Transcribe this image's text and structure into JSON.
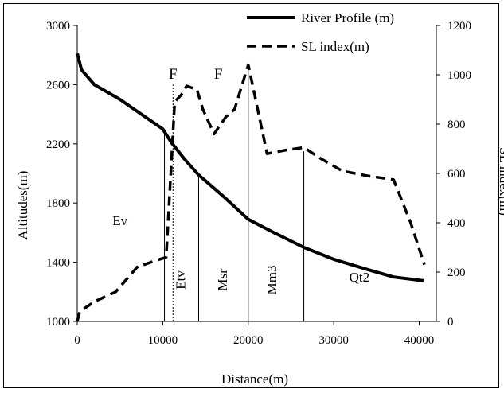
{
  "chart_data": {
    "type": "line",
    "title": "",
    "xlabel": "Distance(m)",
    "ylabel_left": "Altitudes(m)",
    "ylabel_right": "SL index(m)",
    "xlim": [
      0,
      42000
    ],
    "ylim_left": [
      1000,
      3000
    ],
    "ylim_right": [
      0,
      1200
    ],
    "x_ticks": [
      "0",
      "10000",
      "20000",
      "30000",
      "40000"
    ],
    "x_tick_values": [
      0,
      10000,
      20000,
      30000,
      40000
    ],
    "y_left_ticks": [
      "1000",
      "1400",
      "1800",
      "2200",
      "2600",
      "3000"
    ],
    "y_left_tick_values": [
      1000,
      1400,
      1800,
      2200,
      2600,
      3000
    ],
    "y_right_ticks": [
      "0",
      "200",
      "400",
      "600",
      "800",
      "1000",
      "1200"
    ],
    "y_right_tick_values": [
      0,
      200,
      400,
      600,
      800,
      1000,
      1200
    ],
    "legend_position": "top-right",
    "grid": false,
    "series": [
      {
        "name": "River Profile (m)",
        "axis": "left",
        "style": "solid",
        "color": "#000000",
        "points": [
          [
            0,
            2810
          ],
          [
            500,
            2700
          ],
          [
            2000,
            2600
          ],
          [
            5000,
            2500
          ],
          [
            7000,
            2420
          ],
          [
            10000,
            2300
          ],
          [
            11000,
            2210
          ],
          [
            12500,
            2100
          ],
          [
            14200,
            1990
          ],
          [
            17000,
            1850
          ],
          [
            20000,
            1690
          ],
          [
            23000,
            1600
          ],
          [
            26500,
            1500
          ],
          [
            30000,
            1420
          ],
          [
            34000,
            1350
          ],
          [
            37000,
            1300
          ],
          [
            40500,
            1275
          ]
        ]
      },
      {
        "name": "SL index(m)",
        "axis": "right",
        "style": "dashed",
        "color": "#000000",
        "points": [
          [
            0,
            0
          ],
          [
            300,
            40
          ],
          [
            2000,
            80
          ],
          [
            4500,
            120
          ],
          [
            7000,
            220
          ],
          [
            9000,
            245
          ],
          [
            10400,
            260
          ],
          [
            11400,
            890
          ],
          [
            12200,
            920
          ],
          [
            12800,
            955
          ],
          [
            14000,
            940
          ],
          [
            14700,
            860
          ],
          [
            16000,
            760
          ],
          [
            17400,
            830
          ],
          [
            18400,
            860
          ],
          [
            20000,
            1040
          ],
          [
            20500,
            960
          ],
          [
            22200,
            680
          ],
          [
            24500,
            695
          ],
          [
            26500,
            705
          ],
          [
            28500,
            660
          ],
          [
            31000,
            610
          ],
          [
            34000,
            590
          ],
          [
            37000,
            575
          ],
          [
            39000,
            400
          ],
          [
            40600,
            230
          ]
        ]
      }
    ],
    "vertical_lines": [
      {
        "x": 10200,
        "to": 2300,
        "style": "solid"
      },
      {
        "x": 11200,
        "to": 2600,
        "style": "dotted"
      },
      {
        "x": 14200,
        "to": 2000,
        "style": "solid"
      },
      {
        "x": 20000,
        "to": 2720,
        "style": "solid"
      },
      {
        "x": 26500,
        "to": 2150,
        "style": "solid"
      }
    ],
    "zone_labels": [
      {
        "text": "Ev",
        "x": 5000,
        "y": 1650,
        "rotate": false
      },
      {
        "text": "Etv",
        "x": 12600,
        "y": 1280,
        "rotate": true
      },
      {
        "text": "Msr",
        "x": 17500,
        "y": 1280,
        "rotate": true
      },
      {
        "text": "Mm3",
        "x": 23300,
        "y": 1280,
        "rotate": true
      },
      {
        "text": "Qt2",
        "x": 33000,
        "y": 1270,
        "rotate": false
      }
    ],
    "fault_labels": [
      {
        "text": "F",
        "x": 11200,
        "y": 2640
      },
      {
        "text": "F",
        "x": 16500,
        "y": 2640
      }
    ]
  }
}
